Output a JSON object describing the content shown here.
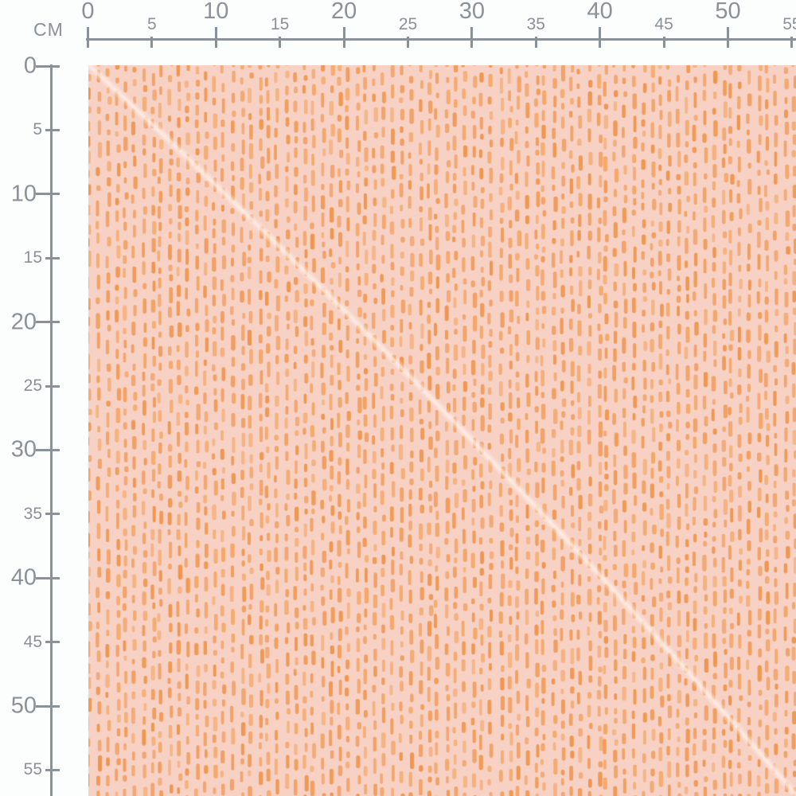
{
  "page": {
    "background_color": "#fcfdfd"
  },
  "rulers": {
    "unit_label": "CM",
    "color": "#8a9197",
    "tick_values": [
      0,
      5,
      10,
      15,
      20,
      25,
      30,
      35,
      40,
      45,
      50,
      55
    ],
    "major_interval": 10
  },
  "swatch": {
    "pattern_name": "orange-dashes-on-pink-fabric",
    "background_color": "#f8d1c5",
    "dash_color": "#ef964e",
    "dash_color_light": "#f3a766",
    "seam_line_color": "#fff3ed"
  }
}
